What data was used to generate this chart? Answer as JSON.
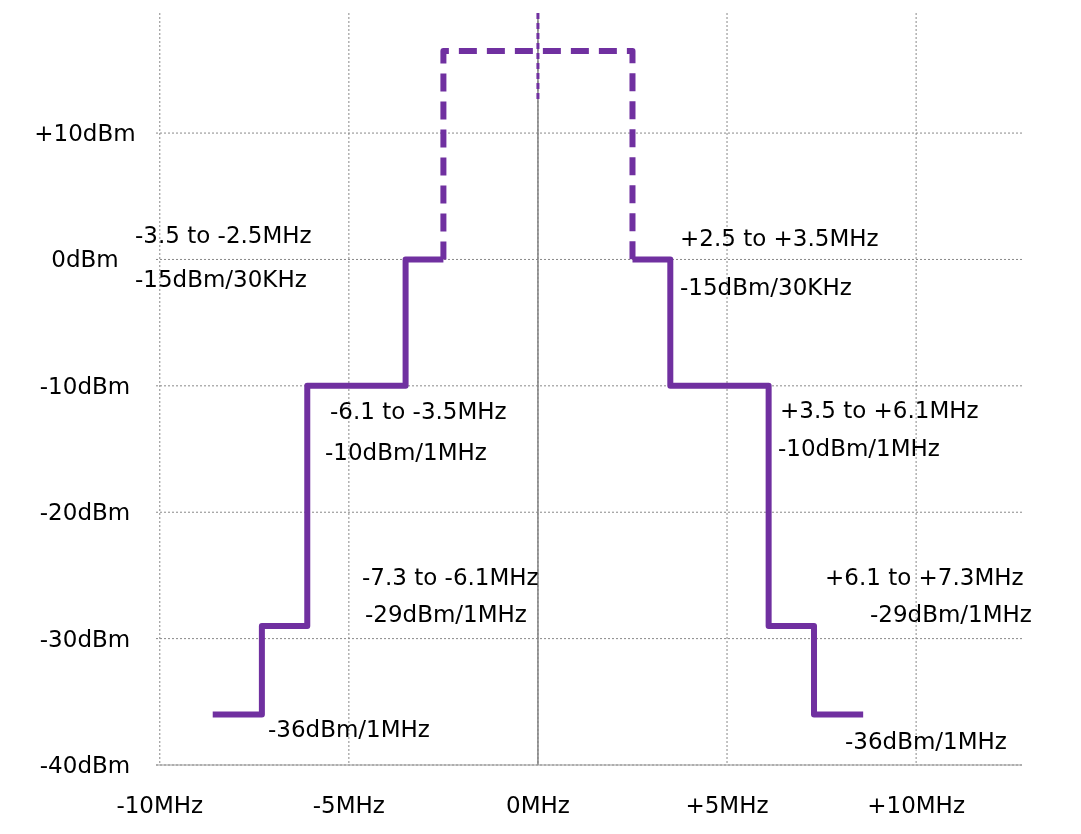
{
  "chart_data": {
    "type": "step",
    "xlim": [
      -10.1,
      12.8
    ],
    "ylim": [
      -40,
      19.5
    ],
    "xticks": [
      {
        "value": -10,
        "label": "-10MHz"
      },
      {
        "value": -5,
        "label": "-5MHz"
      },
      {
        "value": 0,
        "label": "0MHz"
      },
      {
        "value": 5,
        "label": "+5MHz"
      },
      {
        "value": 10,
        "label": "+10MHz"
      }
    ],
    "yticks": [
      {
        "value": -40,
        "label": "-40dBm"
      },
      {
        "value": -30,
        "label": "-30dBm"
      },
      {
        "value": -20,
        "label": "-20dBm"
      },
      {
        "value": -10,
        "label": "-10dBm"
      },
      {
        "value": 0,
        "label": "0dBm"
      },
      {
        "value": 10,
        "label": "+10dBm"
      }
    ],
    "grid": true,
    "series": [
      {
        "color": "#7030a0",
        "line_style": "solid",
        "x": [
          -8.6,
          -7.3,
          -6.1,
          -3.5,
          -2.5
        ],
        "values": [
          -36,
          -29,
          -10,
          0,
          0
        ]
      },
      {
        "color": "#7030a0",
        "line_style": "solid",
        "x": [
          2.5,
          3.5,
          6.1,
          7.3,
          8.6
        ],
        "values": [
          0,
          -10,
          -29,
          -36,
          -36
        ]
      },
      {
        "type": "line",
        "color": "#7030a0",
        "line_style": "dashed",
        "x": [
          -2.5,
          -2.5,
          2.5,
          2.5
        ],
        "values": [
          0,
          16.5,
          16.5,
          0
        ]
      },
      {
        "type": "line",
        "color": "#7030a0",
        "line_style": "dashed",
        "x": [
          0,
          0
        ],
        "values": [
          19.5,
          12.5
        ]
      }
    ],
    "ref_lines": [
      {
        "axis": "x",
        "value": 0,
        "color": "#808080",
        "line_style": "solid"
      }
    ],
    "annotations": [
      "-3.5 to -2.5MHz",
      "-15dBm/30KHz",
      "+2.5 to +3.5MHz",
      "-15dBm/30KHz",
      "-6.1 to -3.5MHz",
      "-10dBm/1MHz",
      "+3.5 to +6.1MHz",
      "-10dBm/1MHz",
      "-7.3 to -6.1MHz",
      "-29dBm/1MHz",
      "+6.1 to +7.3MHz",
      "-29dBm/1MHz",
      "-36dBm/1MHz",
      "-36dBm/1MHz"
    ]
  }
}
